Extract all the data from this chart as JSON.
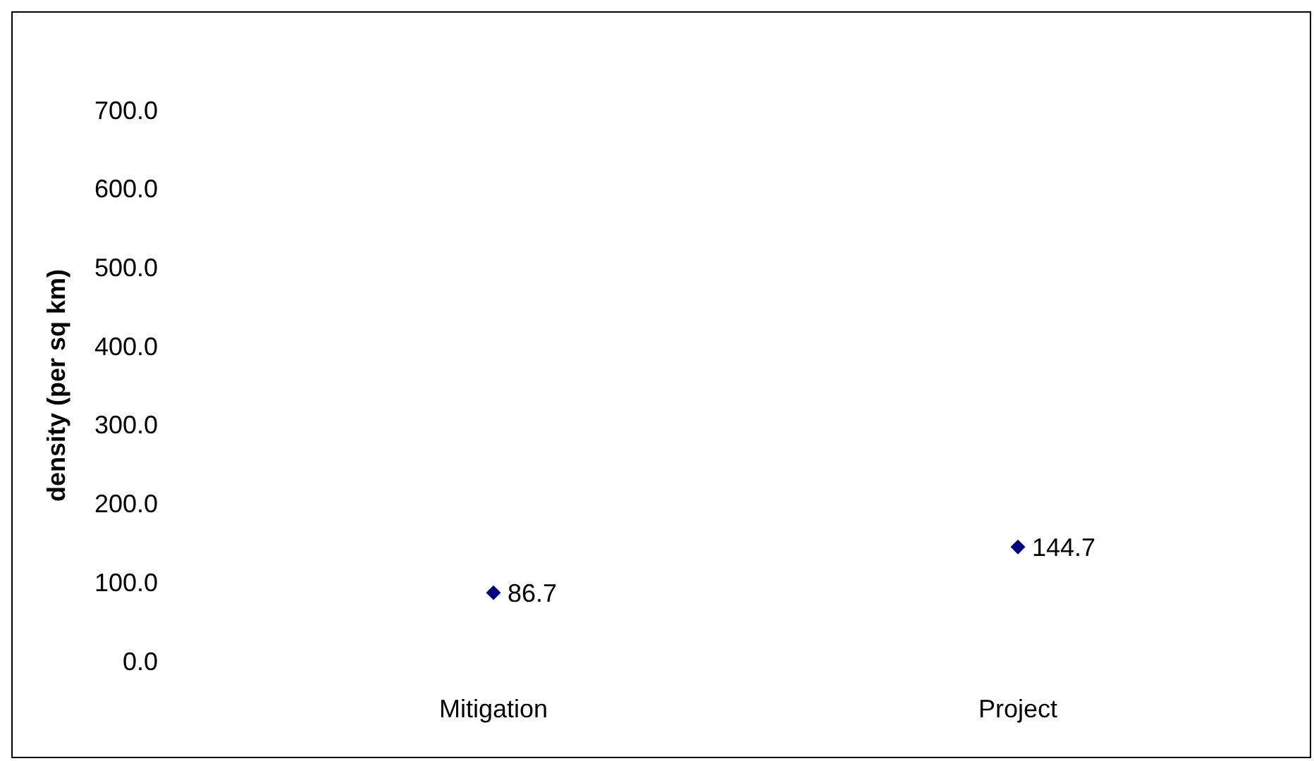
{
  "chart_data": {
    "type": "scatter",
    "ylabel": "density (per sq km)",
    "categories": [
      "Mitigation",
      "Project"
    ],
    "series": [
      {
        "color": "#000080",
        "values": [
          86.7,
          144.7
        ]
      }
    ],
    "ylim": [
      0,
      700
    ],
    "yticks": [
      {
        "value": 0,
        "label": "0.0"
      },
      {
        "value": 100,
        "label": "100.0"
      },
      {
        "value": 200,
        "label": "200.0"
      },
      {
        "value": 300,
        "label": "300.0"
      },
      {
        "value": 400,
        "label": "400.0"
      },
      {
        "value": 500,
        "label": "500.0"
      },
      {
        "value": 600,
        "label": "600.0"
      },
      {
        "value": 700,
        "label": "700.0"
      }
    ],
    "marker": "diamond",
    "data_labels": true,
    "grid": false
  }
}
